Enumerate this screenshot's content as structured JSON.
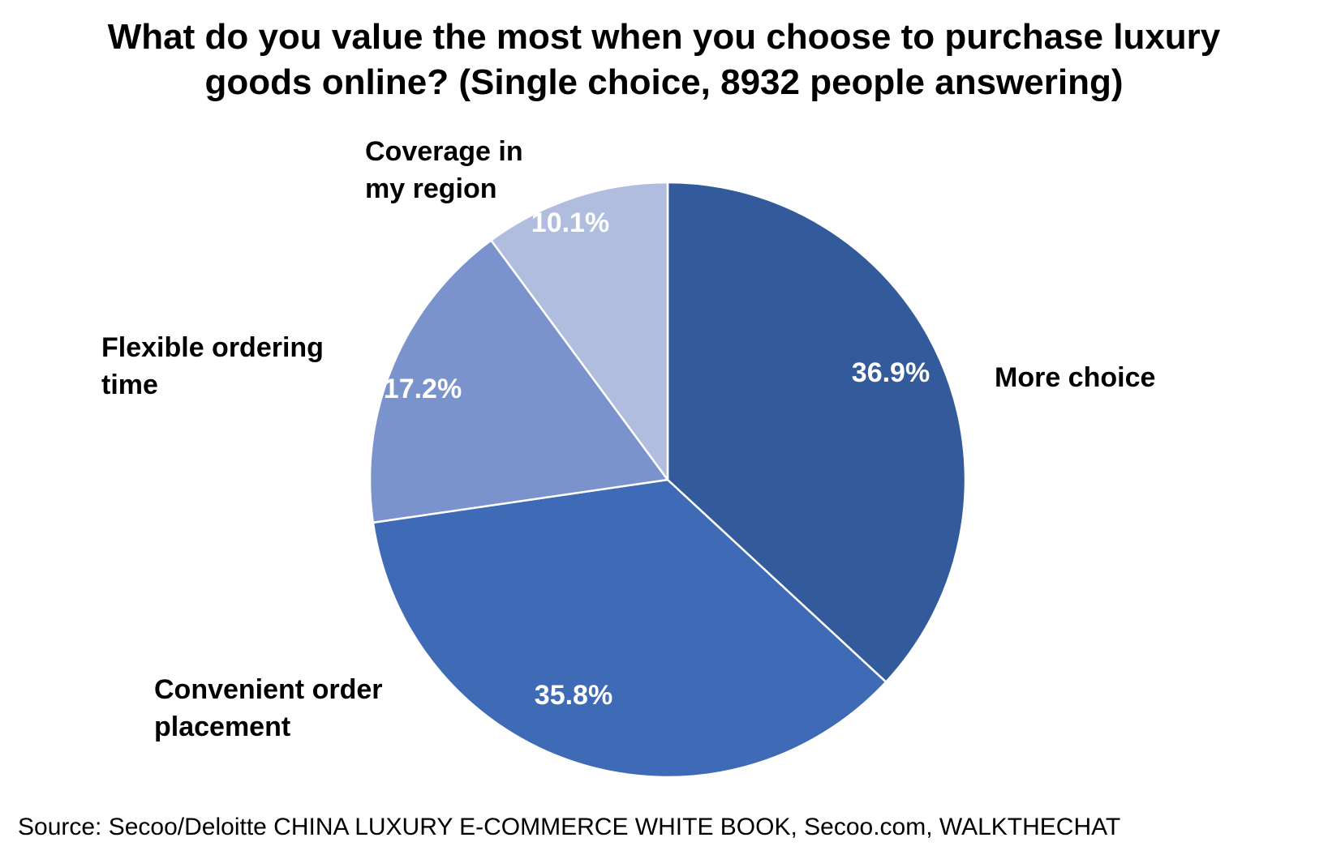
{
  "chart_data": {
    "type": "pie",
    "title_lines": [
      "What do you value the most when you choose to purchase luxury",
      "goods online? (Single choice, 8932 people answering)"
    ],
    "slices": [
      {
        "label_lines": [
          "More choice"
        ],
        "value": 36.9,
        "value_label": "36.9%",
        "color": "#335A9A"
      },
      {
        "label_lines": [
          "Convenient order",
          "placement"
        ],
        "value": 35.8,
        "value_label": "35.8%",
        "color": "#3F6AB6"
      },
      {
        "label_lines": [
          "Flexible ordering",
          "time"
        ],
        "value": 17.2,
        "value_label": "17.2%",
        "color": "#7A93CD"
      },
      {
        "label_lines": [
          "Coverage in",
          "my region"
        ],
        "value": 10.1,
        "value_label": "10.1%",
        "color": "#B1BDDF"
      }
    ],
    "start_angle": "12 o'clock",
    "direction": "clockwise",
    "source": "Source: Secoo/Deloitte CHINA LUXURY E-COMMERCE WHITE BOOK, Secoo.com, WALKTHECHAT"
  }
}
